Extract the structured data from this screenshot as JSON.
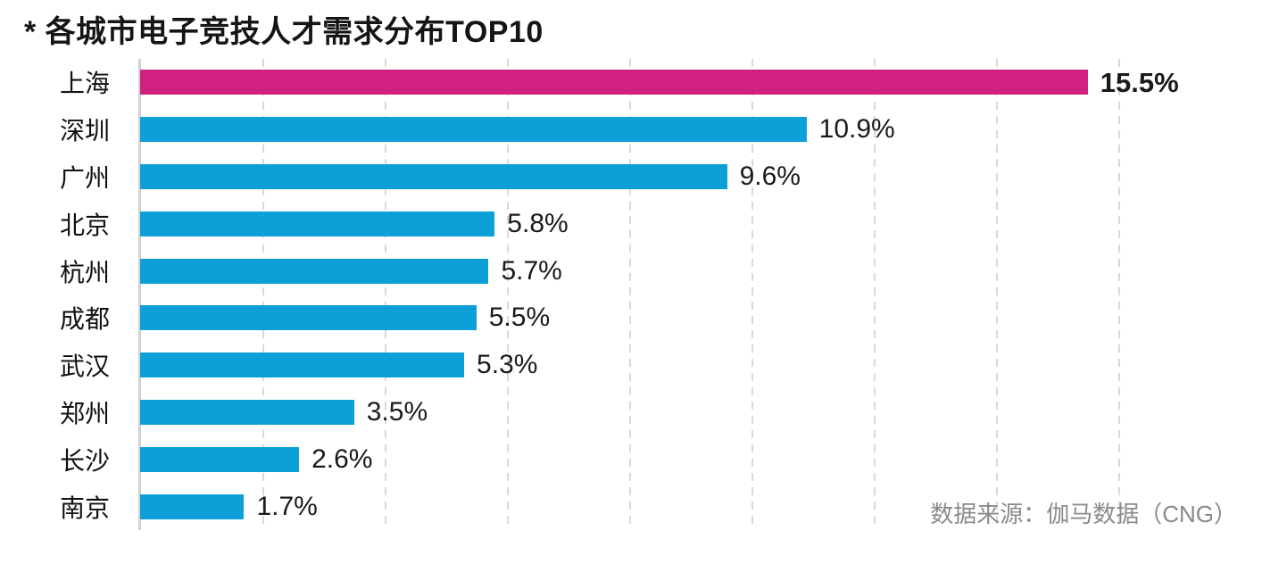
{
  "chart_data": {
    "type": "bar",
    "orientation": "horizontal",
    "title": "* 各城市电子竞技人才需求分布TOP10",
    "source": "数据来源：伽马数据（CNG）",
    "categories": [
      "上海",
      "深圳",
      "广州",
      "北京",
      "杭州",
      "成都",
      "武汉",
      "郑州",
      "长沙",
      "南京"
    ],
    "values": [
      15.5,
      10.9,
      9.6,
      5.8,
      5.7,
      5.5,
      5.3,
      3.5,
      2.6,
      1.7
    ],
    "value_labels": [
      "15.5%",
      "10.9%",
      "9.6%",
      "5.8%",
      "5.7%",
      "5.5%",
      "5.3%",
      "3.5%",
      "2.6%",
      "1.7%"
    ],
    "xlim": [
      0,
      18
    ],
    "gridline_values": [
      2,
      4,
      6,
      8,
      10,
      12,
      14,
      16
    ],
    "grid_style": "vertical-dashed",
    "legend": "none",
    "highlight_index": 0,
    "highlight_color": "#D02080",
    "bar_color": "#0DA0D8",
    "grid_color": "#d9d9d9",
    "axis_color": "#d2d2d2",
    "text_color": "#1a1a1a",
    "source_color": "#8a8a8a"
  }
}
